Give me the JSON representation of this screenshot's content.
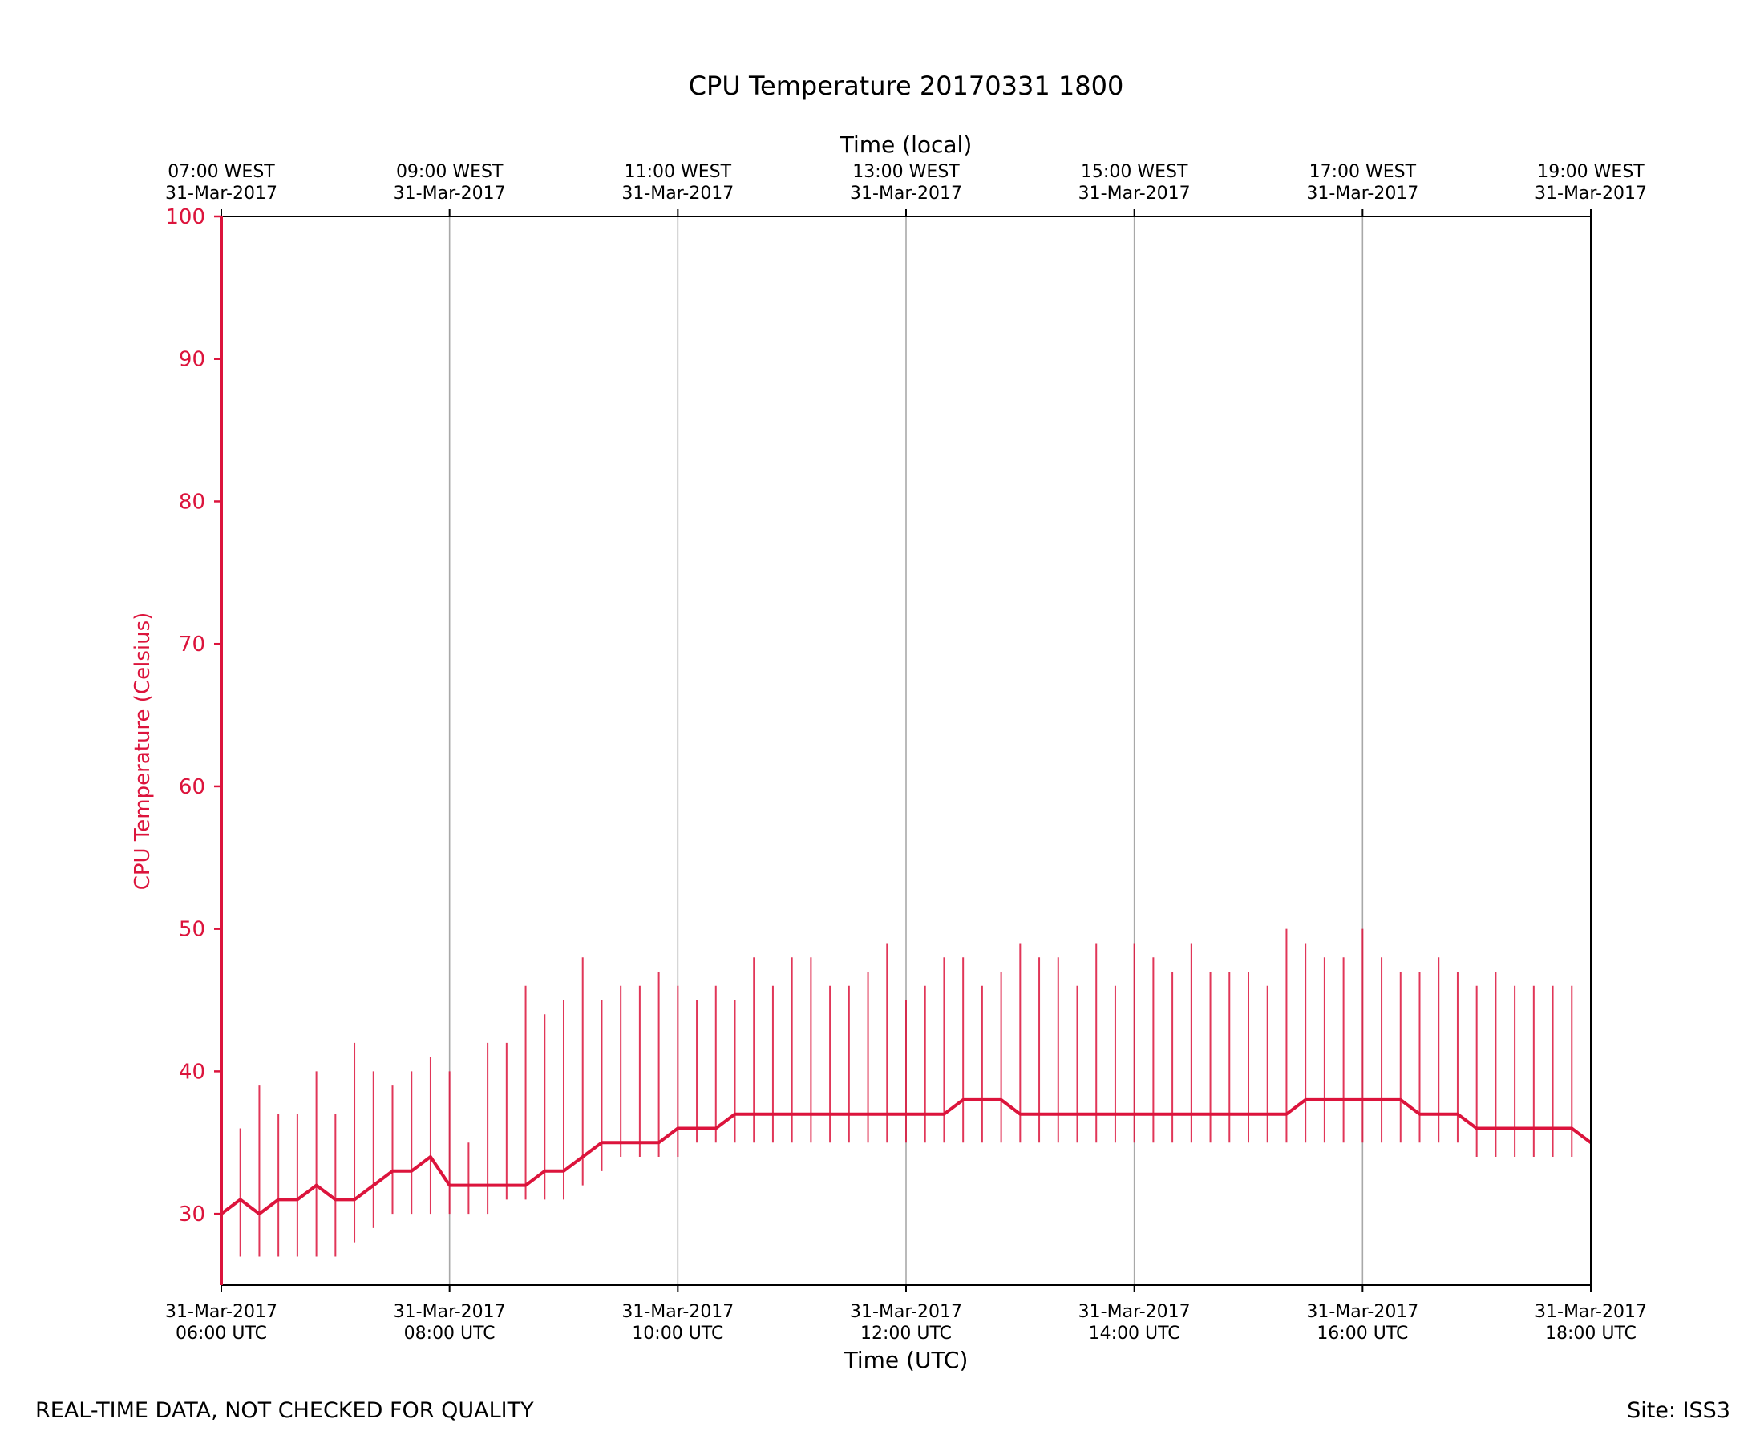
{
  "chart_data": {
    "type": "line",
    "title": "CPU Temperature 20170331 1800",
    "xlabel": "Time (UTC)",
    "xlabel_top": "Time (local)",
    "ylabel": "CPU Temperature (Celsius)",
    "xlim": [
      "2017-03-31 06:00",
      "2017-03-31 18:00"
    ],
    "ylim": [
      25,
      100
    ],
    "yticks": [
      30,
      40,
      50,
      60,
      70,
      80,
      90,
      100
    ],
    "xticks_bottom": [
      {
        "date": "31-Mar-2017",
        "time": "06:00 UTC"
      },
      {
        "date": "31-Mar-2017",
        "time": "08:00 UTC"
      },
      {
        "date": "31-Mar-2017",
        "time": "10:00 UTC"
      },
      {
        "date": "31-Mar-2017",
        "time": "12:00 UTC"
      },
      {
        "date": "31-Mar-2017",
        "time": "14:00 UTC"
      },
      {
        "date": "31-Mar-2017",
        "time": "16:00 UTC"
      },
      {
        "date": "31-Mar-2017",
        "time": "18:00 UTC"
      }
    ],
    "xticks_top": [
      {
        "time": "07:00 WEST",
        "date": "31-Mar-2017"
      },
      {
        "time": "09:00 WEST",
        "date": "31-Mar-2017"
      },
      {
        "time": "11:00 WEST",
        "date": "31-Mar-2017"
      },
      {
        "time": "13:00 WEST",
        "date": "31-Mar-2017"
      },
      {
        "time": "15:00 WEST",
        "date": "31-Mar-2017"
      },
      {
        "time": "17:00 WEST",
        "date": "31-Mar-2017"
      },
      {
        "time": "19:00 WEST",
        "date": "31-Mar-2017"
      }
    ],
    "grid": "vertical",
    "line_color": "#dc143c",
    "series": [
      {
        "x": [
          "06:00",
          "06:10",
          "06:20",
          "06:30",
          "06:40",
          "06:50",
          "07:00",
          "07:10",
          "07:20",
          "07:30",
          "07:40",
          "07:50",
          "08:00",
          "08:10",
          "08:20",
          "08:30",
          "08:40",
          "08:50",
          "09:00",
          "09:10",
          "09:20",
          "09:30",
          "09:40",
          "09:50",
          "10:00",
          "10:10",
          "10:20",
          "10:30",
          "10:40",
          "10:50",
          "11:00",
          "11:10",
          "11:20",
          "11:30",
          "11:40",
          "11:50",
          "12:00",
          "12:10",
          "12:20",
          "12:30",
          "12:40",
          "12:50",
          "13:00",
          "13:10",
          "13:20",
          "13:30",
          "13:40",
          "13:50",
          "14:00",
          "14:10",
          "14:20",
          "14:30",
          "14:40",
          "14:50",
          "15:00",
          "15:10",
          "15:20",
          "15:30",
          "15:40",
          "15:50",
          "16:00",
          "16:10",
          "16:20",
          "16:30",
          "16:40",
          "16:50",
          "17:00",
          "17:10",
          "17:20",
          "17:30",
          "17:40",
          "17:50",
          "18:00"
        ],
        "values": [
          30,
          31,
          30,
          31,
          31,
          32,
          31,
          31,
          32,
          33,
          33,
          34,
          32,
          32,
          32,
          32,
          32,
          33,
          33,
          34,
          35,
          35,
          35,
          35,
          36,
          36,
          36,
          37,
          37,
          37,
          37,
          37,
          37,
          37,
          37,
          37,
          37,
          37,
          37,
          38,
          38,
          38,
          37,
          37,
          37,
          37,
          37,
          37,
          37,
          37,
          37,
          37,
          37,
          37,
          37,
          37,
          37,
          38,
          38,
          38,
          38,
          38,
          38,
          37,
          37,
          37,
          36,
          36,
          36,
          36,
          36,
          36,
          35
        ],
        "min": [
          27,
          27,
          27,
          27,
          27,
          27,
          27,
          28,
          29,
          30,
          30,
          30,
          30,
          30,
          30,
          31,
          31,
          31,
          31,
          32,
          33,
          34,
          34,
          34,
          34,
          35,
          35,
          35,
          35,
          35,
          35,
          35,
          35,
          35,
          35,
          35,
          35,
          35,
          35,
          35,
          35,
          35,
          35,
          35,
          35,
          35,
          35,
          35,
          35,
          35,
          35,
          35,
          35,
          35,
          35,
          35,
          35,
          35,
          35,
          35,
          35,
          35,
          35,
          35,
          35,
          35,
          34,
          34,
          34,
          34,
          34,
          34,
          33
        ],
        "max": [
          37,
          36,
          39,
          37,
          37,
          40,
          37,
          42,
          40,
          39,
          40,
          41,
          40,
          35,
          42,
          42,
          46,
          44,
          45,
          48,
          45,
          46,
          46,
          47,
          46,
          45,
          46,
          45,
          48,
          46,
          48,
          48,
          46,
          46,
          47,
          49,
          45,
          46,
          48,
          48,
          46,
          47,
          49,
          48,
          48,
          46,
          49,
          46,
          49,
          48,
          47,
          49,
          47,
          47,
          47,
          46,
          50,
          49,
          48,
          48,
          50,
          48,
          47,
          47,
          48,
          47,
          46,
          47,
          46,
          46,
          46,
          46,
          46
        ]
      }
    ]
  },
  "footer": {
    "note": "REAL-TIME DATA, NOT CHECKED FOR QUALITY",
    "site": "Site: ISS3"
  }
}
